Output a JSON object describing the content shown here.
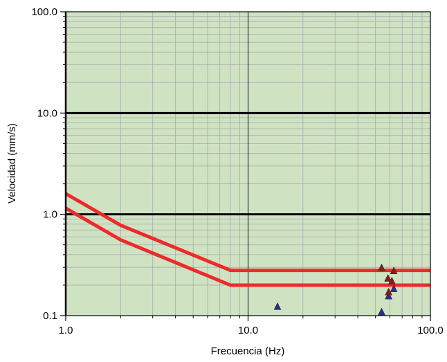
{
  "chart_data": {
    "type": "scatter",
    "title": "",
    "xlabel": "Frecuencia (Hz)",
    "ylabel": "Velocidad (mm/s)",
    "x_scale": "log",
    "y_scale": "log",
    "xlim": [
      1.0,
      100.0
    ],
    "ylim": [
      0.1,
      100.0
    ],
    "x_ticks": [
      "1.0",
      "10.0",
      "100.0"
    ],
    "y_ticks": [
      "0.1",
      "1.0",
      "10.0",
      "100.0"
    ],
    "grid": true,
    "legend": "none",
    "plot_background": "#cfe3c3",
    "limit_lines": [
      {
        "color": "#ee2a2a",
        "x": [
          1.0,
          2.0,
          8.0,
          100.0
        ],
        "y": [
          1.6,
          0.78,
          0.28,
          0.28
        ]
      },
      {
        "color": "#ee2a2a",
        "x": [
          1.0,
          2.0,
          8.0,
          100.0
        ],
        "y": [
          1.15,
          0.56,
          0.2,
          0.2
        ]
      }
    ],
    "series": [
      {
        "color": "#2b2f88",
        "marker": "triangle",
        "points": [
          {
            "x": 14.5,
            "y": 0.122
          },
          {
            "x": 54.0,
            "y": 0.108
          },
          {
            "x": 59.0,
            "y": 0.155
          },
          {
            "x": 63.0,
            "y": 0.183
          }
        ]
      },
      {
        "color": "#8b1a1a",
        "marker": "triangle",
        "points": [
          {
            "x": 54.0,
            "y": 0.295
          },
          {
            "x": 58.5,
            "y": 0.232
          },
          {
            "x": 59.0,
            "y": 0.17
          },
          {
            "x": 61.5,
            "y": 0.218
          },
          {
            "x": 63.0,
            "y": 0.275
          }
        ]
      }
    ]
  }
}
